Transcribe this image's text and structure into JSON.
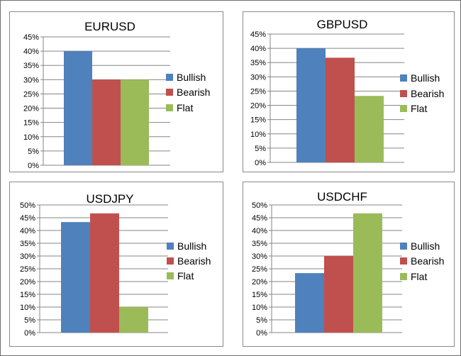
{
  "colors": {
    "bullish": "#4f81bd",
    "bearish": "#c0504d",
    "flat": "#9bbb59",
    "grid": "#868686",
    "axis": "#868686"
  },
  "chart_data": [
    {
      "type": "bar",
      "title": "EURUSD",
      "categories": [
        ""
      ],
      "series": [
        {
          "name": "Bullish",
          "values": [
            40
          ]
        },
        {
          "name": "Bearish",
          "values": [
            30
          ]
        },
        {
          "name": "Flat",
          "values": [
            30
          ]
        }
      ],
      "ylim": [
        0,
        45
      ],
      "yticks": [
        "0%",
        "5%",
        "10%",
        "15%",
        "20%",
        "25%",
        "30%",
        "35%",
        "40%",
        "45%"
      ],
      "grid": true,
      "legend": "right"
    },
    {
      "type": "bar",
      "title": "GBPUSD",
      "categories": [
        ""
      ],
      "series": [
        {
          "name": "Bullish",
          "values": [
            40
          ]
        },
        {
          "name": "Bearish",
          "values": [
            36.7
          ]
        },
        {
          "name": "Flat",
          "values": [
            23.3
          ]
        }
      ],
      "ylim": [
        0,
        45
      ],
      "yticks": [
        "0%",
        "5%",
        "10%",
        "15%",
        "20%",
        "25%",
        "30%",
        "35%",
        "40%",
        "45%"
      ],
      "grid": true,
      "legend": "right"
    },
    {
      "type": "bar",
      "title": "USDJPY",
      "categories": [
        ""
      ],
      "series": [
        {
          "name": "Bullish",
          "values": [
            43.3
          ]
        },
        {
          "name": "Bearish",
          "values": [
            46.7
          ]
        },
        {
          "name": "Flat",
          "values": [
            10
          ]
        }
      ],
      "ylim": [
        0,
        50
      ],
      "yticks": [
        "0%",
        "5%",
        "10%",
        "15%",
        "20%",
        "25%",
        "30%",
        "35%",
        "40%",
        "45%",
        "50%"
      ],
      "grid": true,
      "legend": "right"
    },
    {
      "type": "bar",
      "title": "USDCHF",
      "categories": [
        ""
      ],
      "series": [
        {
          "name": "Bullish",
          "values": [
            23.3
          ]
        },
        {
          "name": "Bearish",
          "values": [
            30
          ]
        },
        {
          "name": "Flat",
          "values": [
            46.7
          ]
        }
      ],
      "ylim": [
        0,
        50
      ],
      "yticks": [
        "0%",
        "5%",
        "10%",
        "15%",
        "20%",
        "25%",
        "30%",
        "35%",
        "40%",
        "45%",
        "50%"
      ],
      "grid": true,
      "legend": "right"
    }
  ]
}
